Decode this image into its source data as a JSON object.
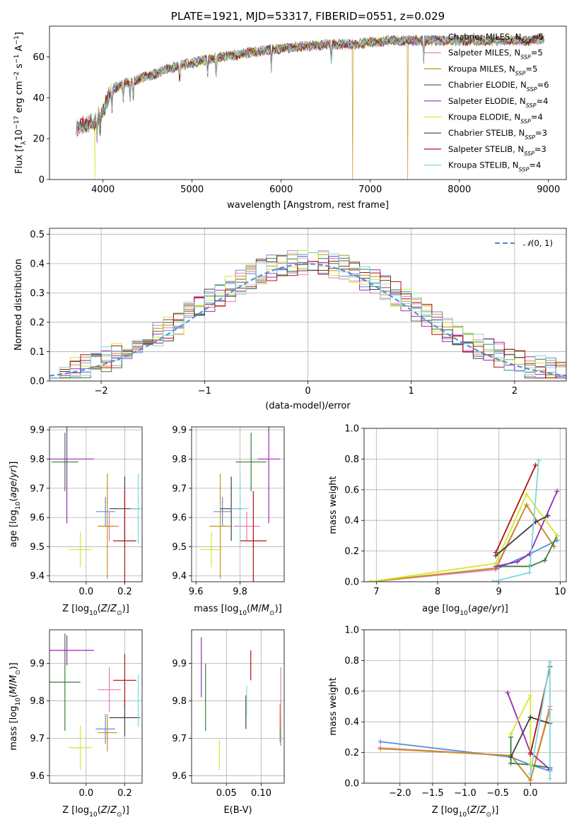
{
  "figure": {
    "title": "PLATE=1921, MJD=53317, FIBERID=0551, z=0.029"
  },
  "colors": {
    "Chabrier MILES": "#5b8fd6",
    "Salpeter MILES": "#e87ab8",
    "Kroupa MILES": "#c8901a",
    "Chabrier ELODIE": "#3a7d3a",
    "Salpeter ELODIE": "#9a2ab8",
    "Kroupa ELODIE": "#d4e82a",
    "Chabrier STELIB": "#404040",
    "Salpeter STELIB": "#b01010",
    "Kroupa STELIB": "#7ed8dc",
    "avg": "#e07a30",
    "normal": "#5b8fd6"
  },
  "chart_data": [
    {
      "id": "spectrum",
      "type": "line",
      "title": "PLATE=1921, MJD=53317, FIBERID=0551, z=0.029",
      "xlabel": "wavelength [Angstrom, rest frame]",
      "ylabel": "Flux [f_λ 10^-17 erg cm^-2 s^-1 A^-1]",
      "xlim": [
        3400,
        9200
      ],
      "ylim": [
        0,
        75
      ],
      "xticks": [
        4000,
        5000,
        6000,
        7000,
        8000,
        9000
      ],
      "yticks": [
        0,
        20,
        40,
        60
      ],
      "grid": false,
      "legend_position": "right",
      "legend": [
        "Chabrier MILES, N_SSP=5",
        "Salpeter MILES, N_SSP=5",
        "Kroupa MILES, N_SSP=5",
        "Chabrier ELODIE, N_SSP=6",
        "Salpeter ELODIE, N_SSP=4",
        "Kroupa ELODIE, N_SSP=4",
        "Chabrier STELIB, N_SSP=3",
        "Salpeter STELIB, N_SSP=3",
        "Kroupa STELIB, N_SSP=4"
      ],
      "continuum": [
        [
          3700,
          25
        ],
        [
          3900,
          28
        ],
        [
          4000,
          33
        ],
        [
          4100,
          44
        ],
        [
          4200,
          46
        ],
        [
          4400,
          49
        ],
        [
          4600,
          52
        ],
        [
          4800,
          55
        ],
        [
          5000,
          57
        ],
        [
          5200,
          59
        ],
        [
          5500,
          61
        ],
        [
          5800,
          63
        ],
        [
          6000,
          64
        ],
        [
          6200,
          65
        ],
        [
          6500,
          66
        ],
        [
          6800,
          66
        ],
        [
          7000,
          67
        ],
        [
          7200,
          68
        ],
        [
          7400,
          68
        ],
        [
          7600,
          68
        ],
        [
          7800,
          68
        ],
        [
          8000,
          68
        ],
        [
          8300,
          68
        ],
        [
          8600,
          68
        ],
        [
          8800,
          68
        ],
        [
          8950,
          69
        ]
      ],
      "absorption_lines": [
        3934,
        3969,
        4102,
        4227,
        4304,
        4340,
        4861,
        5175,
        5270,
        5890,
        6563,
        7600
      ],
      "dropouts": [
        {
          "series": "Kroupa ELODIE",
          "x": 3910
        },
        {
          "series": "Kroupa MILES",
          "x": 6800
        },
        {
          "series": "Kroupa MILES",
          "x": 7420
        }
      ]
    },
    {
      "id": "residuals",
      "type": "histogram",
      "xlabel": "(data-model)/error",
      "ylabel": "Normed distribution",
      "xlim": [
        -2.5,
        2.5
      ],
      "ylim": [
        0,
        0.52
      ],
      "xticks": [
        -2,
        -1,
        0,
        1,
        2
      ],
      "yticks": [
        0.0,
        0.1,
        0.2,
        0.3,
        0.4,
        0.5
      ],
      "grid": true,
      "legend": [
        "N(0,1)"
      ],
      "legend_position": "top-right"
    },
    {
      "id": "age-vs-Z",
      "type": "errorbar",
      "xlabel": "Z [log10(Z/Z⊙)]",
      "ylabel": "age  [log10(age/yr)]",
      "xlim": [
        -0.19,
        0.29
      ],
      "ylim": [
        9.38,
        9.91
      ],
      "xticks": [
        0.0,
        0.2
      ],
      "yticks": [
        9.4,
        9.5,
        9.6,
        9.7,
        9.8,
        9.9
      ],
      "grid": true,
      "points": [
        {
          "series": "Chabrier MILES",
          "x": 0.1,
          "xerr": 0.05,
          "y": 9.62,
          "yerr": 0.05
        },
        {
          "series": "Salpeter MILES",
          "x": 0.12,
          "xerr": 0.05,
          "y": 9.57,
          "yerr": 0.05
        },
        {
          "series": "Kroupa MILES",
          "x": 0.11,
          "xerr": 0.05,
          "y": 9.57,
          "yerr": 0.18
        },
        {
          "series": "Chabrier ELODIE",
          "x": -0.11,
          "xerr": 0.07,
          "y": 9.79,
          "yerr": 0.1
        },
        {
          "series": "Salpeter ELODIE",
          "x": -0.1,
          "xerr": 0.14,
          "y": 9.8,
          "yerr": 0.22
        },
        {
          "series": "Kroupa ELODIE",
          "x": -0.03,
          "xerr": 0.06,
          "y": 9.49,
          "yerr": 0.06
        },
        {
          "series": "Chabrier STELIB",
          "x": 0.2,
          "xerr": 0.08,
          "y": 9.63,
          "yerr": 0.11
        },
        {
          "series": "Salpeter STELIB",
          "x": 0.2,
          "xerr": 0.06,
          "y": 9.52,
          "yerr": 0.17
        },
        {
          "series": "Kroupa STELIB",
          "x": 0.27,
          "xerr": 0.04,
          "y": 9.63,
          "yerr": 0.12
        }
      ]
    },
    {
      "id": "age-vs-mass",
      "type": "errorbar",
      "xlabel": "mass [log10(M/M⊙)]",
      "ylabel": "",
      "xlim": [
        9.58,
        10.0
      ],
      "ylim": [
        9.38,
        9.91
      ],
      "xticks": [
        9.6,
        9.8
      ],
      "yticks": [
        9.4,
        9.5,
        9.6,
        9.7,
        9.8,
        9.9
      ],
      "grid": true,
      "points": [
        {
          "series": "Chabrier MILES",
          "x": 9.72,
          "xerr": 0.04,
          "y": 9.62,
          "yerr": 0.05
        },
        {
          "series": "Salpeter MILES",
          "x": 9.83,
          "xerr": 0.06,
          "y": 9.57,
          "yerr": 0.05
        },
        {
          "series": "Kroupa MILES",
          "x": 9.71,
          "xerr": 0.05,
          "y": 9.57,
          "yerr": 0.18
        },
        {
          "series": "Chabrier ELODIE",
          "x": 9.85,
          "xerr": 0.07,
          "y": 9.79,
          "yerr": 0.1
        },
        {
          "series": "Salpeter ELODIE",
          "x": 9.93,
          "xerr": 0.05,
          "y": 9.8,
          "yerr": 0.22
        },
        {
          "series": "Kroupa ELODIE",
          "x": 9.67,
          "xerr": 0.05,
          "y": 9.49,
          "yerr": 0.06
        },
        {
          "series": "Chabrier STELIB",
          "x": 9.76,
          "xerr": 0.05,
          "y": 9.63,
          "yerr": 0.11
        },
        {
          "series": "Salpeter STELIB",
          "x": 9.86,
          "xerr": 0.06,
          "y": 9.52,
          "yerr": 0.17
        },
        {
          "series": "Kroupa STELIB",
          "x": 9.8,
          "xerr": 0.04,
          "y": 9.63,
          "yerr": 0.12
        }
      ]
    },
    {
      "id": "weight-vs-age",
      "type": "line",
      "xlabel": "age  [log10(age/yr)]",
      "ylabel": "mass weight",
      "xlim": [
        6.8,
        10.1
      ],
      "ylim": [
        0,
        1
      ],
      "xticks": [
        7,
        8,
        9,
        10
      ],
      "yticks": [
        0.0,
        0.2,
        0.4,
        0.6,
        0.8,
        1.0
      ],
      "grid": true,
      "series": [
        {
          "name": "Chabrier MILES",
          "points": [
            [
              6.9,
              0
            ],
            [
              8.95,
              0.08
            ],
            [
              9.5,
              0.18
            ],
            [
              9.95,
              0.27
            ]
          ]
        },
        {
          "name": "Salpeter MILES",
          "points": [
            [
              6.9,
              0
            ],
            [
              8.95,
              0.08
            ],
            [
              9.45,
              0.5
            ],
            [
              9.9,
              0.23
            ]
          ]
        },
        {
          "name": "Kroupa MILES",
          "points": [
            [
              6.9,
              0
            ],
            [
              8.95,
              0.09
            ],
            [
              9.45,
              0.5
            ],
            [
              9.9,
              0.23
            ]
          ]
        },
        {
          "name": "Chabrier ELODIE",
          "points": [
            [
              8.95,
              0.1
            ],
            [
              9.5,
              0.1
            ],
            [
              9.75,
              0.14
            ],
            [
              9.95,
              0.3
            ]
          ]
        },
        {
          "name": "Salpeter ELODIE",
          "points": [
            [
              8.95,
              0.1
            ],
            [
              9.3,
              0.13
            ],
            [
              9.5,
              0.18
            ],
            [
              9.95,
              0.59
            ]
          ]
        },
        {
          "name": "Kroupa ELODIE",
          "points": [
            [
              6.9,
              0
            ],
            [
              8.95,
              0.12
            ],
            [
              9.45,
              0.57
            ],
            [
              9.95,
              0.3
            ]
          ]
        },
        {
          "name": "Chabrier STELIB",
          "points": [
            [
              8.95,
              0.17
            ],
            [
              9.6,
              0.39
            ],
            [
              9.8,
              0.43
            ]
          ]
        },
        {
          "name": "Salpeter STELIB",
          "points": [
            [
              8.95,
              0.19
            ],
            [
              9.6,
              0.76
            ]
          ]
        },
        {
          "name": "Kroupa STELIB",
          "points": [
            [
              8.9,
              0
            ],
            [
              9.5,
              0.06
            ],
            [
              9.65,
              0.79
            ]
          ]
        }
      ]
    },
    {
      "id": "mass-vs-Z",
      "type": "errorbar",
      "xlabel": "Z [log10(Z/Z⊙)]",
      "ylabel": "mass [log10(M/M⊙)]",
      "xlim": [
        -0.19,
        0.29
      ],
      "ylim": [
        9.58,
        9.99
      ],
      "xticks": [
        0.0,
        0.2
      ],
      "yticks": [
        9.6,
        9.7,
        9.8,
        9.9
      ],
      "grid": true,
      "points": [
        {
          "series": "Chabrier MILES",
          "x": 0.1,
          "xerr": 0.05,
          "y": 9.725,
          "yerr": 0.04
        },
        {
          "series": "Salpeter MILES",
          "x": 0.12,
          "xerr": 0.06,
          "y": 9.83,
          "yerr": 0.06
        },
        {
          "series": "Kroupa MILES",
          "x": 0.11,
          "xerr": 0.05,
          "y": 9.715,
          "yerr": 0.05
        },
        {
          "series": "Chabrier ELODIE",
          "x": -0.11,
          "xerr": 0.08,
          "y": 9.85,
          "yerr": 0.13
        },
        {
          "series": "Salpeter ELODIE",
          "x": -0.1,
          "xerr": 0.14,
          "y": 9.935,
          "yerr": 0.04
        },
        {
          "series": "Kroupa ELODIE",
          "x": -0.03,
          "xerr": 0.06,
          "y": 9.675,
          "yerr": 0.06
        },
        {
          "series": "Chabrier STELIB",
          "x": 0.2,
          "xerr": 0.08,
          "y": 9.755,
          "yerr": 0.05
        },
        {
          "series": "Salpeter STELIB",
          "x": 0.2,
          "xerr": 0.06,
          "y": 9.855,
          "yerr": 0.07
        },
        {
          "series": "Kroupa STELIB",
          "x": 0.27,
          "xerr": 0.04,
          "y": 9.8,
          "yerr": 0.07
        }
      ]
    },
    {
      "id": "mass-vs-EBV",
      "type": "errorbar",
      "xlabel": "E(B-V)",
      "ylabel": "",
      "xlim": [
        0.0,
        0.133
      ],
      "ylim": [
        9.58,
        9.99
      ],
      "xticks": [
        0.05,
        0.1
      ],
      "yticks": [
        9.6,
        9.7,
        9.8,
        9.9
      ],
      "grid": true,
      "points": [
        {
          "series": "Salpeter ELODIE",
          "x": 0.014,
          "y": 9.89,
          "yerr": 0.08
        },
        {
          "series": "Chabrier ELODIE",
          "x": 0.02,
          "y": 9.81,
          "yerr": 0.09
        },
        {
          "series": "Kroupa ELODIE",
          "x": 0.04,
          "y": 9.655,
          "yerr": 0.04
        },
        {
          "series": "Chabrier STELIB",
          "x": 0.078,
          "y": 9.77,
          "yerr": 0.045
        },
        {
          "series": "Kroupa STELIB",
          "x": 0.079,
          "y": 9.8,
          "yerr": 0.04
        },
        {
          "series": "Salpeter STELIB",
          "x": 0.085,
          "y": 9.895,
          "yerr": 0.04
        },
        {
          "series": "Chabrier MILES",
          "x": 0.128,
          "y": 9.72,
          "yerr": 0.04
        },
        {
          "series": "Kroupa MILES",
          "x": 0.127,
          "y": 9.74,
          "yerr": 0.05
        },
        {
          "series": "Salpeter MILES",
          "x": 0.128,
          "y": 9.81,
          "yerr": 0.08
        }
      ]
    },
    {
      "id": "weight-vs-Z",
      "type": "line",
      "xlabel": "Z [log10(Z/Z⊙)]",
      "ylabel": "mass weight",
      "xlim": [
        -2.55,
        0.55
      ],
      "ylim": [
        0,
        1
      ],
      "xticks": [
        -2.0,
        -1.5,
        -1.0,
        -0.5,
        0.0
      ],
      "yticks": [
        0.0,
        0.2,
        0.4,
        0.6,
        0.8,
        1.0
      ],
      "grid": true,
      "series": [
        {
          "name": "Chabrier MILES",
          "points": [
            [
              -2.3,
              0.27
            ],
            [
              -0.3,
              0.17
            ],
            [
              0.0,
              0.12
            ],
            [
              0.3,
              0.08
            ]
          ]
        },
        {
          "name": "Salpeter MILES",
          "points": [
            [
              -2.3,
              0.23
            ],
            [
              -0.3,
              0.18
            ],
            [
              0.0,
              0.02
            ],
            [
              0.3,
              0.5
            ]
          ]
        },
        {
          "name": "Kroupa MILES",
          "points": [
            [
              -2.3,
              0.225
            ],
            [
              -0.3,
              0.18
            ],
            [
              0.0,
              0.02
            ],
            [
              0.3,
              0.48
            ]
          ]
        },
        {
          "name": "Chabrier ELODIE",
          "points": [
            [
              -0.3,
              0.3
            ],
            [
              -0.3,
              0.13
            ],
            [
              0.0,
              0.12
            ],
            [
              0.3,
              0.1
            ]
          ]
        },
        {
          "name": "Salpeter ELODIE",
          "points": [
            [
              -0.35,
              0.59
            ],
            [
              0.0,
              0.2
            ],
            [
              0.3,
              0.09
            ]
          ]
        },
        {
          "name": "Kroupa ELODIE",
          "points": [
            [
              -0.3,
              0.32
            ],
            [
              0.0,
              0.57
            ],
            [
              0.0,
              0.12
            ]
          ]
        },
        {
          "name": "Chabrier STELIB",
          "points": [
            [
              -0.3,
              0.17
            ],
            [
              0.0,
              0.43
            ],
            [
              0.3,
              0.39
            ]
          ]
        },
        {
          "name": "Salpeter STELIB",
          "points": [
            [
              0.0,
              0.19
            ],
            [
              0.3,
              0.76
            ]
          ]
        },
        {
          "name": "Kroupa STELIB",
          "points": [
            [
              0.0,
              0.06
            ],
            [
              0.3,
              0.79
            ],
            [
              0.3,
              0.03
            ]
          ]
        }
      ]
    }
  ]
}
